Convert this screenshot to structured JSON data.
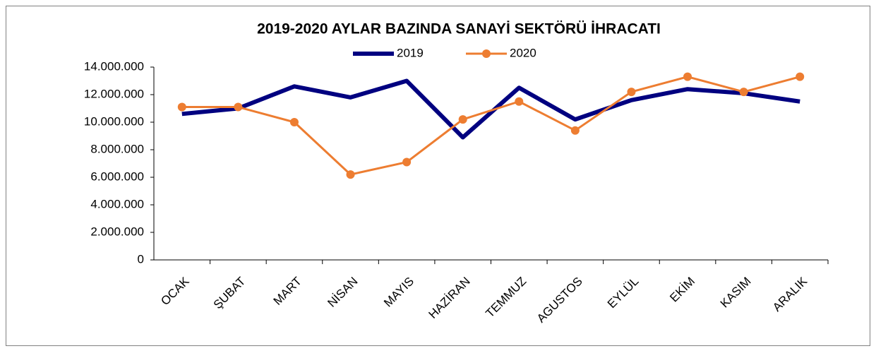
{
  "chart_data": {
    "type": "line",
    "title": "2019-2020 AYLAR BAZINDA SANAYİ SEKTÖRÜ İHRACATI",
    "categories": [
      "OCAK",
      "ŞUBAT",
      "MART",
      "NİSAN",
      "MAYIS",
      "HAZİRAN",
      "TEMMUZ",
      "AGUSTOS",
      "EYLÜL",
      "EKİM",
      "KASIM",
      "ARALIK"
    ],
    "series": [
      {
        "name": "2019",
        "color": "#000080",
        "values": [
          10600000,
          11000000,
          12600000,
          11800000,
          13000000,
          8900000,
          12500000,
          10200000,
          11600000,
          12400000,
          12100000,
          11500000
        ]
      },
      {
        "name": "2020",
        "color": "#ed7d31",
        "values": [
          11100000,
          11100000,
          10000000,
          6200000,
          7100000,
          10200000,
          11500000,
          9400000,
          12200000,
          13300000,
          12200000,
          13300000
        ]
      }
    ],
    "ylim": [
      0,
      14000000
    ],
    "yticks": [
      0,
      {
        "value": 2000000,
        "label": "2.000.000"
      },
      {
        "value": 4000000,
        "label": "4.000.000"
      },
      {
        "value": 6000000,
        "label": "6.000.000"
      },
      {
        "value": 8000000,
        "label": "8.000.000"
      },
      {
        "value": 10000000,
        "label": "10.000.000"
      },
      {
        "value": 12000000,
        "label": "12.000.000"
      },
      {
        "value": 14000000,
        "label": "14.000.000"
      }
    ],
    "grid": false,
    "legend": "top"
  }
}
